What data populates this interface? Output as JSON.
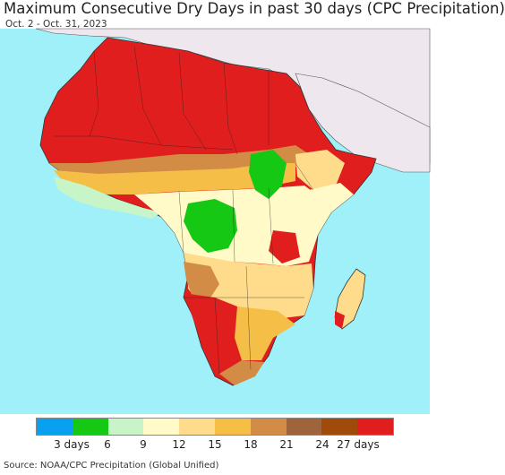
{
  "header": {
    "title": "Maximum Consecutive Dry Days in past 30 days (CPC Precipitation)",
    "subtitle": "Oct. 2 - Oct. 31, 2023"
  },
  "legend": {
    "colors": [
      "#0aa0f0",
      "#14c814",
      "#c8f5c8",
      "#fffac8",
      "#ffdc8c",
      "#f5be46",
      "#d28c46",
      "#a0643c",
      "#a04b0a",
      "#e11e1e"
    ],
    "tick_labels": [
      "3 days",
      "6",
      "9",
      "12",
      "15",
      "18",
      "21",
      "24",
      "27 days"
    ]
  },
  "map_colors": {
    "ocean": "#a0f0fa",
    "land_other": "#eee8ee",
    "driest": "#e11e1e",
    "very_dry": "#a04b0a",
    "dry": "#d28c46",
    "moderate": "#f5be46",
    "light": "#ffdc8c",
    "pale": "#fffac8",
    "wet_light": "#c8f5c8",
    "wet": "#14c814"
  },
  "footer": {
    "source": "Source: NOAA/CPC Precipitation (Global Unified)"
  }
}
